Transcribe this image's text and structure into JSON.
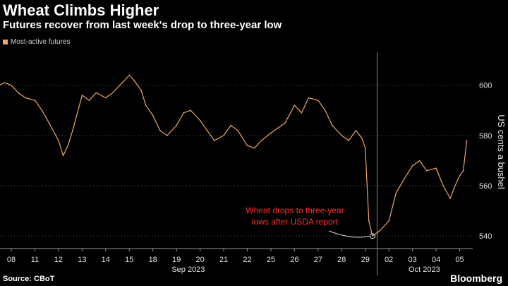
{
  "title": "Wheat Climbs Higher",
  "subtitle": "Futures recover from last week's drop to three-year low",
  "legend": {
    "label": "Most-active futures",
    "color": "#f0a860"
  },
  "source": "Source: CBoT",
  "brand": "Bloomberg",
  "chart_data": {
    "type": "line",
    "title": "Wheat Climbs Higher",
    "subtitle": "Futures recover from last week's drop to three-year low",
    "ylabel": "US cents a bushel",
    "xlabel": "",
    "ylim": [
      535,
      612
    ],
    "yticks": [
      540,
      560,
      580,
      600
    ],
    "grid": true,
    "legend_position": "top-left",
    "x_ticks": [
      "08",
      "11",
      "12",
      "13",
      "14",
      "15",
      "18",
      "19",
      "20",
      "21",
      "22",
      "25",
      "26",
      "27",
      "28",
      "29",
      "02",
      "03",
      "04",
      "05"
    ],
    "month_labels": [
      {
        "label": "Sep 2023",
        "start": 0,
        "end": 15
      },
      {
        "label": "Oct 2023",
        "start": 16,
        "end": 19
      }
    ],
    "series": [
      {
        "name": "Most-active futures",
        "color": "#f0a860",
        "x": [
          -0.5,
          -0.3,
          0.0,
          0.3,
          0.6,
          1.0,
          1.3,
          1.6,
          2.0,
          2.2,
          2.4,
          2.6,
          2.8,
          3.0,
          3.3,
          3.6,
          4.0,
          4.3,
          4.6,
          5.0,
          5.2,
          5.5,
          5.7,
          6.0,
          6.3,
          6.6,
          7.0,
          7.3,
          7.6,
          8.0,
          8.3,
          8.6,
          9.0,
          9.3,
          9.6,
          10.0,
          10.3,
          10.6,
          11.0,
          11.3,
          11.6,
          12.0,
          12.3,
          12.6,
          13.0,
          13.3,
          13.6,
          14.0,
          14.3,
          14.6,
          14.85,
          15.0,
          15.05,
          15.15,
          15.3,
          15.6,
          16.0,
          16.3,
          16.6,
          17.0,
          17.3,
          17.6,
          18.0,
          18.3,
          18.6,
          18.8,
          19.0,
          19.15,
          19.3
        ],
        "values": [
          600,
          601,
          600,
          597,
          595,
          594,
          590,
          585,
          578,
          572,
          576,
          582,
          589,
          596,
          594,
          597,
          595,
          597,
          600,
          604,
          602,
          598,
          592,
          588,
          582,
          580,
          584,
          589,
          590,
          586,
          582,
          578,
          580,
          584,
          582,
          576,
          575,
          578,
          581,
          583,
          585,
          592,
          589,
          595,
          594,
          590,
          584,
          580,
          578,
          582,
          579,
          575,
          565,
          546,
          540,
          542,
          546,
          557,
          562,
          568,
          570,
          566,
          567,
          560,
          555,
          560,
          564,
          566,
          578
        ]
      }
    ],
    "annotations": [
      {
        "text": "Wheat drops to three-year\nlows after USDA report",
        "x": 15.3,
        "y": 540,
        "color": "#ff3030"
      }
    ]
  }
}
